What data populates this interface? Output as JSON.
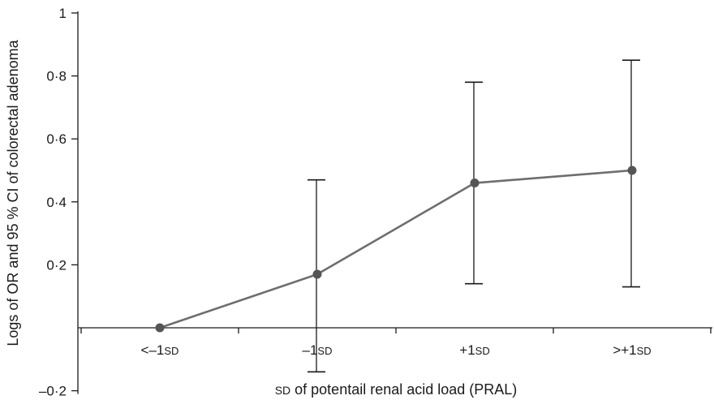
{
  "chart_data": {
    "type": "line",
    "title": "",
    "xlabel": "SD of potentail renal acid load (PRAL)",
    "ylabel": "Logs of OR and 95 % CI of colorectal adenoma",
    "categories": [
      "<–1SD",
      "–1SD",
      "+1SD",
      ">+1SD"
    ],
    "category_labels": [
      {
        "main": "<–1",
        "sub": "SD"
      },
      {
        "main": "–1",
        "sub": "SD"
      },
      {
        "main": "+1",
        "sub": "SD"
      },
      {
        "main": ">+1",
        "sub": "SD"
      }
    ],
    "series": [
      {
        "values": [
          0.0,
          0.17,
          0.46,
          0.5
        ],
        "ci_lower": [
          null,
          -0.14,
          0.14,
          0.13
        ],
        "ci_upper": [
          null,
          0.47,
          0.78,
          0.85
        ]
      }
    ],
    "ylim": [
      -0.2,
      1.0
    ],
    "yticks": [
      -0.2,
      0.2,
      0.4,
      0.6,
      0.8,
      1.0
    ],
    "ytick_labels": [
      "–0·2",
      "0·2",
      "0·4",
      "0·6",
      "0·8",
      "1"
    ],
    "colors": {
      "line": "#6e6e6e",
      "marker": "#555555",
      "errorbar": "#1a1a1a",
      "axis": "#1a1a1a"
    },
    "grid": false,
    "legend": "none"
  }
}
